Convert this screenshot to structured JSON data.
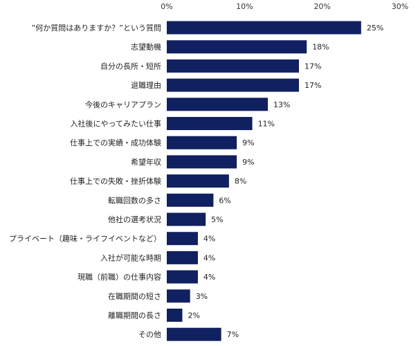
{
  "chart_data": {
    "type": "bar",
    "orientation": "horizontal",
    "categories": [
      "”何か質問はありますか？”という質問",
      "志望動機",
      "自分の長所・短所",
      "退職理由",
      "今後のキャリアプラン",
      "入社後にやってみたい仕事",
      "仕事上での実績・成功体験",
      "希望年収",
      "仕事上での失敗・挫折体験",
      "転職回数の多さ",
      "他社の選考状況",
      "プライベート（趣味・ライフイベントなど）",
      "入社が可能な時期",
      "現職（前職）の仕事内容",
      "在職期間の短さ",
      "離職期間の長さ",
      "その他"
    ],
    "values": [
      25,
      18,
      17,
      17,
      13,
      11,
      9,
      9,
      8,
      6,
      5,
      4,
      4,
      4,
      3,
      2,
      7
    ],
    "value_labels": [
      "25%",
      "18%",
      "17%",
      "17%",
      "13%",
      "11%",
      "9%",
      "9%",
      "8%",
      "6%",
      "5%",
      "4%",
      "4%",
      "4%",
      "3%",
      "2%",
      "7%"
    ],
    "x_ticks": [
      0,
      10,
      20,
      30
    ],
    "x_tick_labels": [
      "0%",
      "10%",
      "20%",
      "30%"
    ],
    "xlim": [
      0,
      30
    ],
    "title": "",
    "xlabel": "",
    "ylabel": "",
    "grid": false,
    "bar_color": "#102060"
  }
}
